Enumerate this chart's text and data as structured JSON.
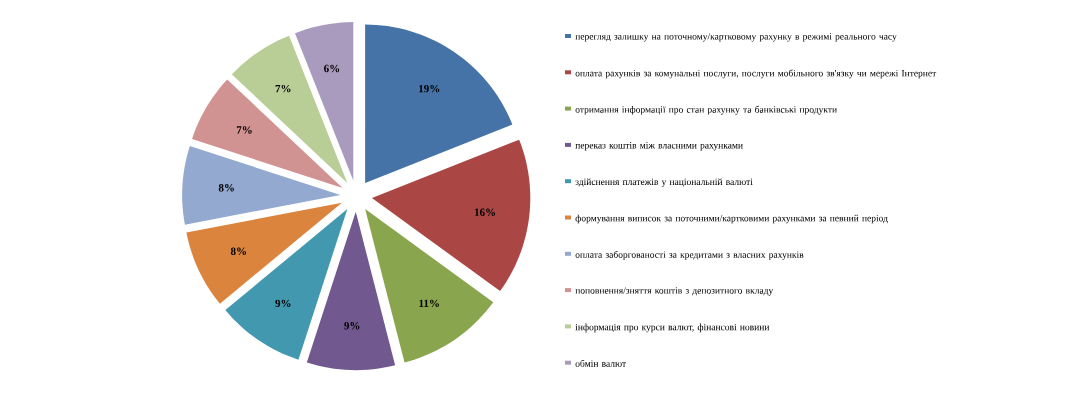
{
  "chart_data": {
    "type": "pie",
    "legend": "right",
    "categories": [
      "перегляд залишку на поточному/картковому рахунку в режимі реального часу",
      "оплата рахунків за комунальні послуги, послуги мобільного зв'язку чи мережі Інтернет",
      "отримання інформації про стан рахунку та банківські продукти",
      "переказ коштів між власними рахунками",
      "здійснення платежів у національній валюті",
      "формування виписок за поточними/картковими рахунками за певний період",
      "оплата заборгованості за кредитами з власних рахунків",
      "поповнення/зняття коштів з депозитного вкладу",
      "інформація про курси валют, фінансові новини",
      "обмін валют"
    ],
    "values": [
      19,
      16,
      11,
      9,
      9,
      8,
      8,
      7,
      7,
      6
    ],
    "value_labels": [
      "19%",
      "16%",
      "11%",
      "9%",
      "9%",
      "8%",
      "8%",
      "7%",
      "7%",
      "6%"
    ],
    "colors": [
      "#4572a7",
      "#aa4643",
      "#89a54e",
      "#71588f",
      "#4198af",
      "#db843d",
      "#93a9cf",
      "#d19392",
      "#b9cd96",
      "#a99bbd"
    ]
  }
}
